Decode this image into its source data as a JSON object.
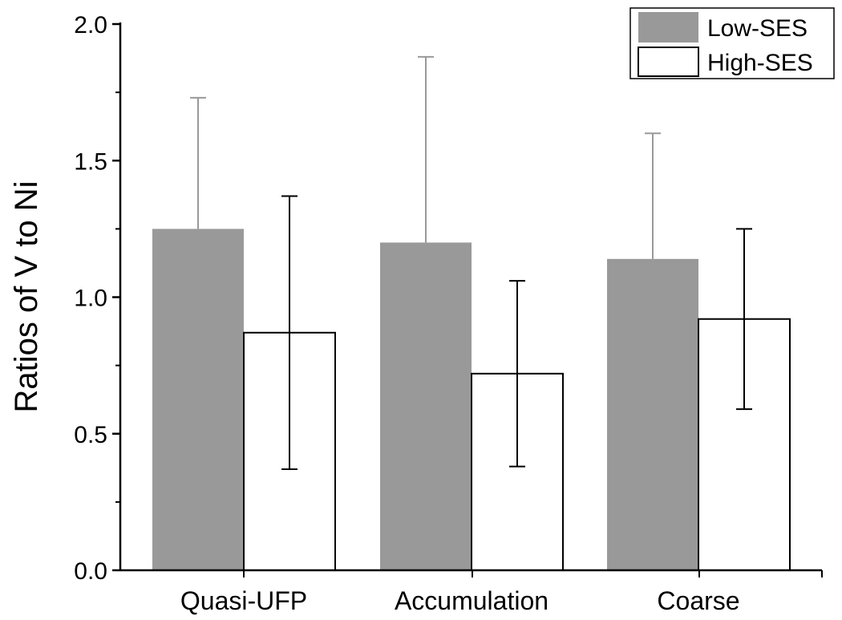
{
  "chart_data": {
    "type": "bar",
    "title": "",
    "xlabel": "",
    "ylabel": "Ratios of V to Ni",
    "ylim": [
      0,
      2.0
    ],
    "yticks": [
      "0.0",
      "0.5",
      "1.0",
      "1.5",
      "2.0"
    ],
    "ytick_values": [
      0,
      0.5,
      1.0,
      1.5,
      2.0
    ],
    "categories": [
      "Quasi-UFP",
      "Accumulation",
      "Coarse"
    ],
    "legend_position": "top-right",
    "series": [
      {
        "name": "Low-SES",
        "color": "#999999",
        "errcolor": "#999999",
        "values": [
          1.25,
          1.2,
          1.14
        ],
        "errors": [
          0.48,
          0.68,
          0.46
        ],
        "error_direction": "up"
      },
      {
        "name": "High-SES",
        "color": "#ffffff",
        "errcolor": "#000000",
        "values": [
          0.87,
          0.72,
          0.92
        ],
        "errors": [
          0.5,
          0.34,
          0.33
        ],
        "error_direction": "both"
      }
    ]
  }
}
